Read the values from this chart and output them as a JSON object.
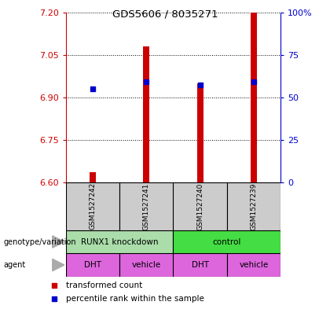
{
  "title": "GDS5606 / 8035271",
  "samples": [
    "GSM1527242",
    "GSM1527241",
    "GSM1527240",
    "GSM1527239"
  ],
  "bar_bottoms": [
    6.6,
    6.6,
    6.6,
    6.6
  ],
  "bar_tops": [
    6.635,
    7.08,
    6.95,
    7.2
  ],
  "percentile_values": [
    6.93,
    6.955,
    6.945,
    6.955
  ],
  "ylim": [
    6.6,
    7.2
  ],
  "yticks_left": [
    6.6,
    6.75,
    6.9,
    7.05,
    7.2
  ],
  "yticks_right": [
    0,
    25,
    50,
    75,
    100
  ],
  "bar_color": "#cc0000",
  "percentile_color": "#0000cc",
  "genotype_groups": [
    {
      "label": "RUNX1 knockdown",
      "start": 0,
      "end": 2,
      "color": "#aaddaa"
    },
    {
      "label": "control",
      "start": 2,
      "end": 4,
      "color": "#44dd44"
    }
  ],
  "agent_labels": [
    "DHT",
    "vehicle",
    "DHT",
    "vehicle"
  ],
  "agent_color": "#dd66dd",
  "genotype_label": "genotype/variation",
  "agent_label": "agent",
  "legend_items": [
    {
      "label": "transformed count",
      "color": "#cc0000"
    },
    {
      "label": "percentile rank within the sample",
      "color": "#0000cc"
    }
  ],
  "left_tick_color": "#cc0000",
  "right_tick_color": "#0000cc",
  "sample_box_color": "#cccccc",
  "bar_width": 0.12
}
